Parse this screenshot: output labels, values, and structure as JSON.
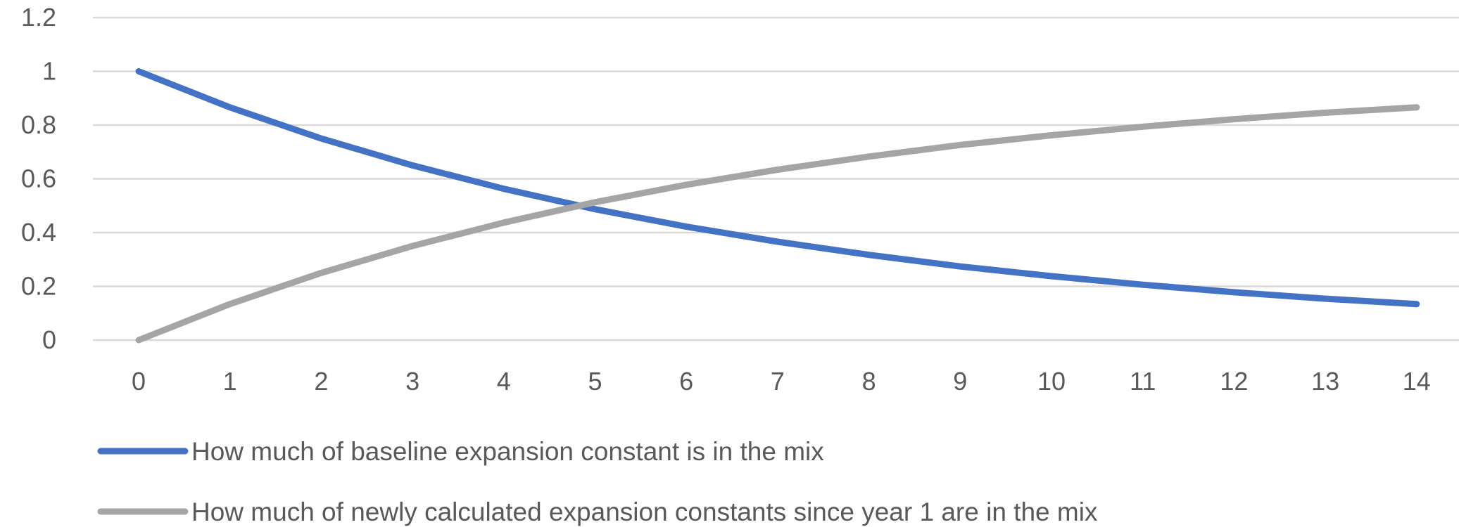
{
  "chart_data": {
    "type": "line",
    "title": "",
    "xlabel": "",
    "ylabel": "",
    "x": [
      0,
      1,
      2,
      3,
      4,
      5,
      6,
      7,
      8,
      9,
      10,
      11,
      12,
      13,
      14
    ],
    "ylim": [
      0,
      1.2
    ],
    "yticks": [
      "0",
      "0.2",
      "0.4",
      "0.6",
      "0.8",
      "1",
      "1.2"
    ],
    "grid": true,
    "legend": "bottom",
    "series": [
      {
        "name": "How much of baseline expansion constant is in the mix",
        "color": "#4472c4",
        "values": [
          1,
          0.866,
          0.75,
          0.65,
          0.563,
          0.487,
          0.422,
          0.366,
          0.317,
          0.274,
          0.238,
          0.206,
          0.178,
          0.154,
          0.134
        ]
      },
      {
        "name": "How much of newly calculated expansion constants since year 1 are in the mix",
        "color": "#a5a5a5",
        "values": [
          0,
          0.134,
          0.25,
          0.35,
          0.437,
          0.513,
          0.578,
          0.634,
          0.683,
          0.726,
          0.762,
          0.794,
          0.822,
          0.846,
          0.866
        ]
      }
    ]
  }
}
